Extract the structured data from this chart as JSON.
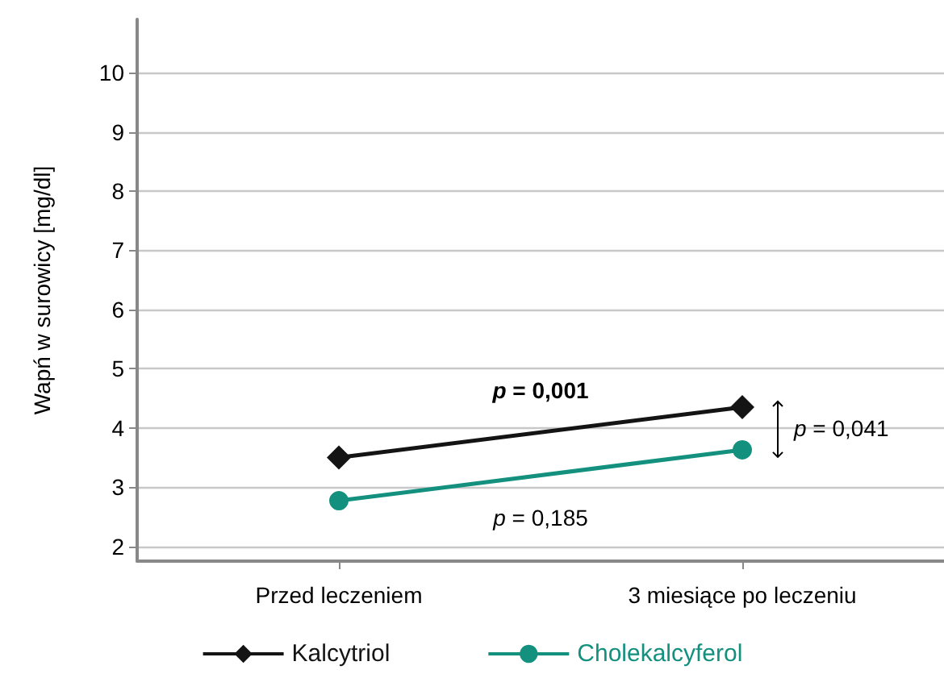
{
  "chart_data": {
    "type": "line",
    "ylabel": "Wapń w surowicy [mg/dl]",
    "categories": [
      "Przed leczeniem",
      "3 miesiące po leczeniu"
    ],
    "series": [
      {
        "name": "Kalcytriol",
        "color": "#141414",
        "marker": "diamond",
        "values": [
          3.5,
          4.35
        ]
      },
      {
        "name": "Cholekalcyferol",
        "color": "#14907f",
        "marker": "circle",
        "values": [
          2.77,
          3.63
        ]
      }
    ],
    "ylim": [
      1.75,
      10.9
    ],
    "yticks": [
      2,
      3,
      4,
      5,
      6,
      7,
      8,
      9,
      10
    ],
    "grid": "y",
    "legend": "bottom",
    "annotations": [
      "p = 0,001",
      "p = 0,185",
      "p = 0,041"
    ]
  }
}
